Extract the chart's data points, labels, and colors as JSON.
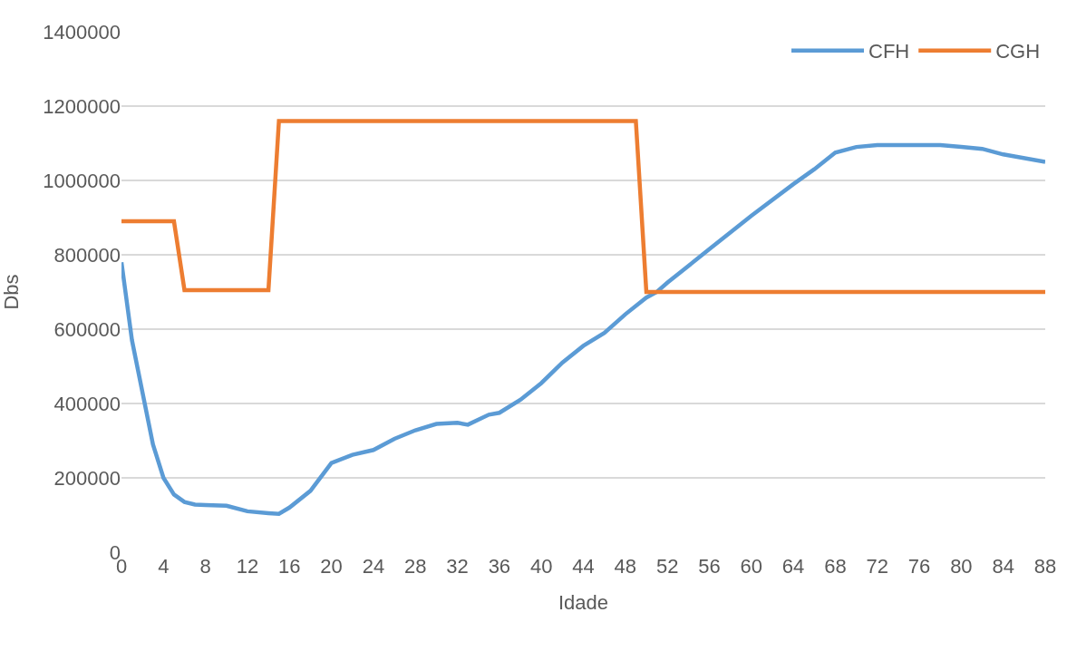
{
  "chart_data": {
    "type": "line",
    "xlabel": "Idade",
    "ylabel": "Dbs",
    "xlim": [
      0,
      88
    ],
    "xticks": [
      0,
      4,
      8,
      12,
      16,
      20,
      24,
      28,
      32,
      36,
      40,
      44,
      48,
      52,
      56,
      60,
      64,
      68,
      72,
      76,
      80,
      84,
      88
    ],
    "ylim": [
      0,
      1400000
    ],
    "yticks": [
      0,
      200000,
      400000,
      600000,
      800000,
      1000000,
      1200000,
      1400000
    ],
    "grid": "y",
    "legend": "top right",
    "marker": "none",
    "line_style": "solid",
    "series": [
      {
        "name": "CFH",
        "color": "#5b9bd5",
        "x": [
          0,
          1,
          2,
          3,
          4,
          5,
          6,
          7,
          8,
          10,
          12,
          14,
          15,
          16,
          18,
          20,
          22,
          24,
          26,
          28,
          30,
          32,
          33,
          35,
          36,
          38,
          40,
          42,
          44,
          46,
          48,
          50,
          51,
          52,
          56,
          60,
          64,
          66,
          68,
          70,
          72,
          76,
          78,
          80,
          82,
          84,
          88
        ],
        "values": [
          780000,
          570000,
          430000,
          290000,
          200000,
          155000,
          135000,
          128000,
          127000,
          125000,
          110000,
          105000,
          103000,
          120000,
          165000,
          240000,
          262000,
          275000,
          305000,
          328000,
          345000,
          348000,
          343000,
          370000,
          375000,
          410000,
          455000,
          510000,
          555000,
          590000,
          640000,
          685000,
          700000,
          725000,
          815000,
          905000,
          990000,
          1030000,
          1075000,
          1090000,
          1095000,
          1095000,
          1095000,
          1090000,
          1085000,
          1070000,
          1050000
        ]
      },
      {
        "name": "CGH",
        "color": "#ed7d31",
        "x": [
          0,
          5,
          6,
          14,
          15,
          49,
          50,
          88
        ],
        "values": [
          890000,
          890000,
          705000,
          705000,
          1160000,
          1160000,
          700000,
          700000
        ]
      }
    ]
  }
}
